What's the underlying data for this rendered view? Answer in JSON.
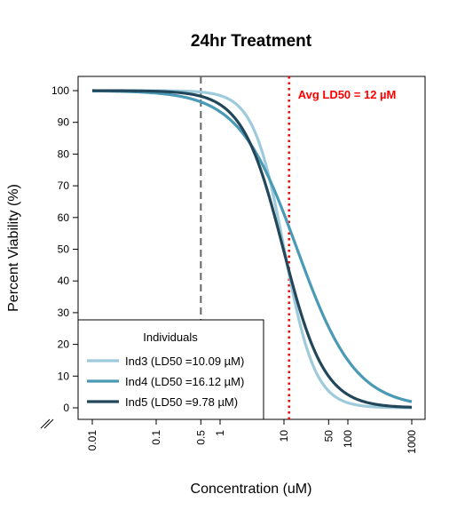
{
  "chart_data": {
    "type": "line",
    "title": "24hr Treatment",
    "xlabel": "Concentration (uM)",
    "ylabel": "Percent Viability (%)",
    "x_scale": "log",
    "xlim": [
      0.01,
      1000
    ],
    "ylim": [
      0,
      100
    ],
    "x_ticks": [
      0.01,
      0.1,
      0.5,
      1,
      10,
      50,
      100,
      1000
    ],
    "x_tick_labels": [
      "0.01",
      "0.1",
      "0.5",
      "1",
      "10",
      "50",
      "100",
      "1000"
    ],
    "y_ticks": [
      0,
      10,
      20,
      30,
      40,
      50,
      60,
      70,
      80,
      90,
      100
    ],
    "y_tick_labels": [
      "0",
      "10",
      "20",
      "30",
      "40",
      "50",
      "60",
      "70",
      "80",
      "90",
      "100"
    ],
    "legend_title": "Individuals",
    "legend_position": "bottom-left",
    "series": [
      {
        "name": "Ind3 (LD50 =10.09 µM)",
        "color": "#9ecbdb",
        "ld50": 10.09,
        "hill": 1.8
      },
      {
        "name": "Ind4 (LD50 =16.12 µM)",
        "color": "#4a9ab5",
        "ld50": 16.12,
        "hill": 0.95
      },
      {
        "name": "Ind5 (LD50 =9.78 µM)",
        "color": "#23475a",
        "ld50": 9.78,
        "hill": 1.35
      }
    ],
    "reference_lines": [
      {
        "x": 0.5,
        "style": "dashed",
        "color": "#666666"
      },
      {
        "x": 12,
        "style": "dotted",
        "color": "#ff0000",
        "label": "Avg LD50 = 12 µM"
      }
    ]
  }
}
